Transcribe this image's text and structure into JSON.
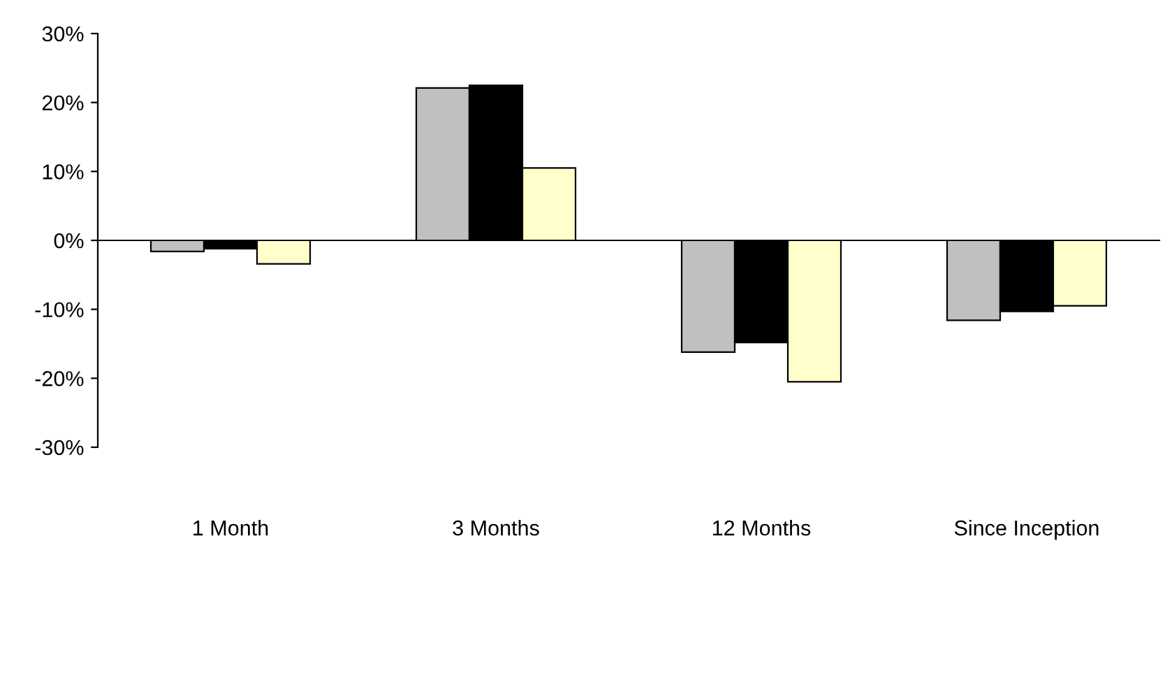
{
  "chart_data": {
    "type": "bar",
    "categories": [
      "1 Month",
      "3 Months",
      "12 Months",
      "Since Inception"
    ],
    "series": [
      {
        "color": "#c0c0c0",
        "values": [
          -1.6,
          22.1,
          -16.2,
          -11.6
        ]
      },
      {
        "color": "#000000",
        "values": [
          -1.2,
          22.5,
          -14.8,
          -10.3
        ]
      },
      {
        "color": "#ffffcc",
        "values": [
          -3.4,
          10.5,
          -20.5,
          -9.5
        ]
      }
    ],
    "ylim": [
      -30,
      30
    ],
    "yticks": [
      {
        "value": -30,
        "label": "-30%"
      },
      {
        "value": -20,
        "label": "-20%"
      },
      {
        "value": -10,
        "label": "-10%"
      },
      {
        "value": 0,
        "label": "0%"
      },
      {
        "value": 10,
        "label": "10%"
      },
      {
        "value": 20,
        "label": "20%"
      },
      {
        "value": 30,
        "label": "30%"
      }
    ]
  }
}
